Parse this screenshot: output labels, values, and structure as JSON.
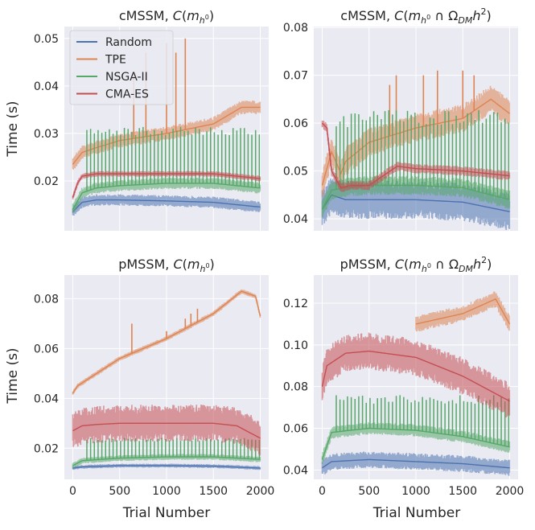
{
  "figure": {
    "ylabel": "Time (s)",
    "xlabel": "Trial Number",
    "legend": {
      "placement": "top-left of first panel",
      "items": [
        {
          "name": "Random",
          "color": "#4c72b0"
        },
        {
          "name": "TPE",
          "color": "#dd8452"
        },
        {
          "name": "NSGA-II",
          "color": "#55a868"
        },
        {
          "name": "CMA-ES",
          "color": "#c44e52"
        }
      ]
    }
  },
  "chart_data": [
    {
      "type": "line",
      "title_main": "cMSSM, ",
      "title_math": "C(m_h0)",
      "xlabel": "",
      "ylabel": "Time (s)",
      "xlim": [
        -90,
        2090
      ],
      "ylim": [
        0.0095,
        0.0525
      ],
      "x_ticks": [],
      "y_ticks": [
        0.02,
        0.03,
        0.04,
        0.05
      ],
      "y_tick_labels": [
        "0.02",
        "0.03",
        "0.04",
        "0.05"
      ],
      "series": [
        {
          "name": "Random",
          "color": "#4c72b0",
          "x": [
            0,
            100,
            250,
            500,
            1000,
            1500,
            2000
          ],
          "values": [
            0.0135,
            0.0155,
            0.016,
            0.016,
            0.0158,
            0.0155,
            0.0145
          ],
          "band": 0.0012
        },
        {
          "name": "TPE",
          "color": "#dd8452",
          "x": [
            0,
            100,
            250,
            500,
            1000,
            1500,
            1800,
            2000
          ],
          "values": [
            0.0235,
            0.026,
            0.027,
            0.0285,
            0.03,
            0.032,
            0.0355,
            0.0355
          ],
          "band": 0.0015,
          "spikes": [
            [
              650,
              0.043
            ],
            [
              780,
              0.047
            ],
            [
              1000,
              0.049
            ],
            [
              1100,
              0.047
            ],
            [
              1200,
              0.05
            ]
          ]
        },
        {
          "name": "NSGA-II",
          "color": "#55a868",
          "x": [
            0,
            100,
            250,
            500,
            1000,
            1500,
            2000
          ],
          "values": [
            0.014,
            0.0175,
            0.0185,
            0.019,
            0.0195,
            0.0195,
            0.0185
          ],
          "band": 0.0012,
          "periodic_spike": 0.0305
        },
        {
          "name": "CMA-ES",
          "color": "#c44e52",
          "x": [
            0,
            50,
            100,
            250,
            500,
            1000,
            1500,
            2000
          ],
          "values": [
            0.0165,
            0.0195,
            0.021,
            0.0215,
            0.0215,
            0.0215,
            0.0215,
            0.0205
          ],
          "band": 0.0006
        }
      ]
    },
    {
      "type": "line",
      "title_main": "cMSSM, ",
      "title_math": "C(m_h0 ∩ Ω_DM h^2)",
      "xlabel": "",
      "ylabel": "",
      "xlim": [
        -90,
        2090
      ],
      "ylim": [
        0.0375,
        0.0802
      ],
      "x_ticks": [],
      "y_ticks": [
        0.04,
        0.05,
        0.06,
        0.07,
        0.08
      ],
      "y_tick_labels": [
        "0.04",
        "0.05",
        "0.06",
        "0.07",
        "0.08"
      ],
      "series": [
        {
          "name": "Random",
          "color": "#4c72b0",
          "x": [
            0,
            100,
            250,
            500,
            1000,
            1500,
            2000
          ],
          "values": [
            0.042,
            0.045,
            0.044,
            0.044,
            0.044,
            0.0435,
            0.0415
          ],
          "band": 0.004
        },
        {
          "name": "TPE",
          "color": "#dd8452",
          "x": [
            0,
            100,
            200,
            250,
            500,
            1000,
            1500,
            1800,
            2000
          ],
          "values": [
            0.047,
            0.054,
            0.0495,
            0.052,
            0.056,
            0.059,
            0.061,
            0.065,
            0.062
          ],
          "band": 0.003,
          "spikes": [
            [
              720,
              0.068
            ],
            [
              790,
              0.07
            ],
            [
              1080,
              0.07
            ],
            [
              1230,
              0.071
            ],
            [
              1500,
              0.071
            ],
            [
              1620,
              0.07
            ]
          ]
        },
        {
          "name": "NSGA-II",
          "color": "#55a868",
          "x": [
            0,
            100,
            250,
            500,
            1000,
            1500,
            2000
          ],
          "values": [
            0.042,
            0.046,
            0.0465,
            0.047,
            0.047,
            0.0465,
            0.044
          ],
          "band": 0.002,
          "periodic_spike": 0.061
        },
        {
          "name": "CMA-ES",
          "color": "#c44e52",
          "x": [
            0,
            50,
            100,
            200,
            300,
            500,
            800,
            1000,
            1500,
            2000
          ],
          "values": [
            0.06,
            0.059,
            0.05,
            0.0465,
            0.047,
            0.047,
            0.051,
            0.0505,
            0.05,
            0.049
          ],
          "band": 0.001
        }
      ]
    },
    {
      "type": "line",
      "title_main": "pMSSM, ",
      "title_math": "C(m_h0)",
      "xlabel": "Trial Number",
      "ylabel": "Time (s)",
      "xlim": [
        -90,
        2090
      ],
      "ylim": [
        0.0075,
        0.0895
      ],
      "x_ticks": [
        0,
        500,
        1000,
        1500,
        2000
      ],
      "x_tick_labels": [
        "0",
        "500",
        "1000",
        "1500",
        "2000"
      ],
      "y_ticks": [
        0.02,
        0.04,
        0.06,
        0.08
      ],
      "y_tick_labels": [
        "0.02",
        "0.04",
        "0.06",
        "0.08"
      ],
      "series": [
        {
          "name": "Random",
          "color": "#4c72b0",
          "x": [
            0,
            100,
            500,
            1000,
            1500,
            2000
          ],
          "values": [
            0.012,
            0.0125,
            0.013,
            0.013,
            0.0128,
            0.012
          ],
          "band": 0.0008
        },
        {
          "name": "TPE",
          "color": "#dd8452",
          "x": [
            0,
            50,
            500,
            1000,
            1500,
            1800,
            1950,
            2000
          ],
          "values": [
            0.042,
            0.045,
            0.056,
            0.064,
            0.074,
            0.083,
            0.081,
            0.073
          ],
          "band": 0.001,
          "spikes": [
            [
              630,
              0.07
            ],
            [
              1000,
              0.067
            ],
            [
              1200,
              0.072
            ],
            [
              1260,
              0.074
            ],
            [
              1330,
              0.076
            ]
          ]
        },
        {
          "name": "NSGA-II",
          "color": "#55a868",
          "x": [
            0,
            100,
            500,
            1000,
            1500,
            2000
          ],
          "values": [
            0.013,
            0.015,
            0.016,
            0.0165,
            0.0165,
            0.0155
          ],
          "band": 0.0012,
          "periodic_spike": 0.0235
        },
        {
          "name": "CMA-ES",
          "color": "#c44e52",
          "x": [
            0,
            100,
            250,
            500,
            1000,
            1500,
            1750,
            2000
          ],
          "values": [
            0.027,
            0.029,
            0.0295,
            0.03,
            0.03,
            0.03,
            0.029,
            0.024
          ],
          "band": 0.0075
        }
      ]
    },
    {
      "type": "line",
      "title_main": "pMSSM, ",
      "title_math": "C(m_h0 ∩ Ω_DM h^2)",
      "xlabel": "Trial Number",
      "ylabel": "",
      "xlim": [
        -90,
        2090
      ],
      "ylim": [
        0.0355,
        0.1335
      ],
      "x_ticks": [
        0,
        500,
        1000,
        1500,
        2000
      ],
      "x_tick_labels": [
        "0",
        "500",
        "1000",
        "1500",
        "2000"
      ],
      "y_ticks": [
        0.04,
        0.06,
        0.08,
        0.1,
        0.12
      ],
      "y_tick_labels": [
        "0.04",
        "0.06",
        "0.08",
        "0.10",
        "0.12"
      ],
      "series": [
        {
          "name": "Random",
          "color": "#4c72b0",
          "x": [
            0,
            100,
            500,
            1000,
            1500,
            2000
          ],
          "values": [
            0.041,
            0.044,
            0.045,
            0.044,
            0.043,
            0.041
          ],
          "band": 0.004
        },
        {
          "name": "TPE",
          "color": "#dd8452",
          "x": [
            1000,
            1500,
            1850,
            2000
          ],
          "values": [
            0.11,
            0.115,
            0.122,
            0.11
          ],
          "band": 0.004
        },
        {
          "name": "NSGA-II",
          "color": "#55a868",
          "x": [
            0,
            100,
            500,
            1000,
            1500,
            2000
          ],
          "values": [
            0.045,
            0.058,
            0.06,
            0.059,
            0.056,
            0.051
          ],
          "band": 0.003,
          "periodic_spike": 0.074
        },
        {
          "name": "CMA-ES",
          "color": "#c44e52",
          "x": [
            0,
            50,
            250,
            500,
            1000,
            1500,
            2000
          ],
          "values": [
            0.08,
            0.09,
            0.096,
            0.097,
            0.094,
            0.085,
            0.073
          ],
          "band": 0.009
        }
      ]
    }
  ]
}
